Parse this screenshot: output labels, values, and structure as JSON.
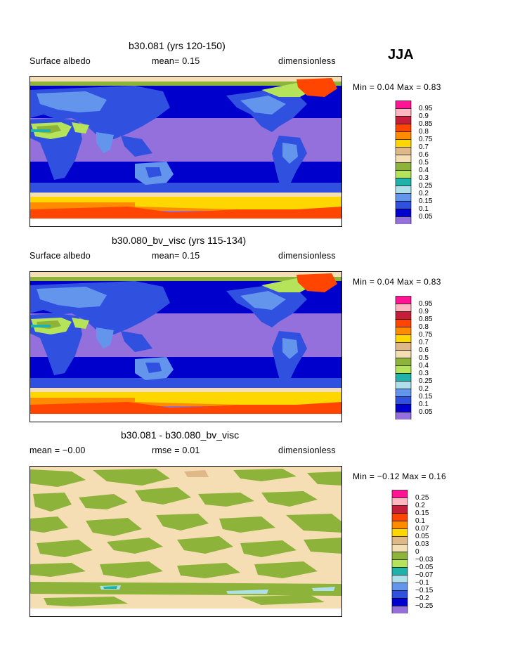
{
  "season": "JJA",
  "panels": [
    {
      "title": "b30.081 (yrs 120-150)",
      "left_label": "Surface albedo",
      "mean_text": "mean=   0.15",
      "units": "dimensionless",
      "minmax": "Min =   0.04  Max =    0.83",
      "legend": {
        "labels": [
          "0.95",
          "0.9",
          "0.85",
          "0.8",
          "0.75",
          "0.7",
          "0.6",
          "0.5",
          "0.4",
          "0.3",
          "0.25",
          "0.2",
          "0.15",
          "0.1",
          "0.05"
        ],
        "colors": [
          "#ff1493",
          "#ffb6c1",
          "#c41e3a",
          "#ff4500",
          "#ff8c00",
          "#ffd700",
          "#deb887",
          "#f5deb3",
          "#8db33a",
          "#b5e35a",
          "#20b2aa",
          "#aee0ec",
          "#6495ed",
          "#3050e0",
          "#0000cd",
          "#9370db"
        ]
      }
    },
    {
      "title": "b30.080_bv_visc (yrs 115-134)",
      "left_label": "Surface albedo",
      "mean_text": "mean=   0.15",
      "units": "dimensionless",
      "minmax": "Min =   0.04  Max =    0.83",
      "legend": {
        "labels": [
          "0.95",
          "0.9",
          "0.85",
          "0.8",
          "0.75",
          "0.7",
          "0.6",
          "0.5",
          "0.4",
          "0.3",
          "0.25",
          "0.2",
          "0.15",
          "0.1",
          "0.05"
        ],
        "colors": [
          "#ff1493",
          "#ffb6c1",
          "#c41e3a",
          "#ff4500",
          "#ff8c00",
          "#ffd700",
          "#deb887",
          "#f5deb3",
          "#8db33a",
          "#b5e35a",
          "#20b2aa",
          "#aee0ec",
          "#6495ed",
          "#3050e0",
          "#0000cd",
          "#9370db"
        ]
      }
    },
    {
      "title": "b30.081 - b30.080_bv_visc",
      "left_label": "mean =   −0.00",
      "mean_text": "rmse =    0.01",
      "units": "dimensionless",
      "minmax": "Min =   −0.12  Max =     0.16",
      "legend": {
        "labels": [
          "0.25",
          "0.2",
          "0.15",
          "0.1",
          "0.07",
          "0.05",
          "0.03",
          "0",
          "−0.03",
          "−0.05",
          "−0.07",
          "−0.1",
          "−0.15",
          "−0.2",
          "−0.25"
        ],
        "colors": [
          "#ff1493",
          "#ffb6c1",
          "#c41e3a",
          "#ff4500",
          "#ff8c00",
          "#ffd700",
          "#deb887",
          "#f5deb3",
          "#8db33a",
          "#b5e35a",
          "#20b2aa",
          "#aee0ec",
          "#6495ed",
          "#3050e0",
          "#0000cd",
          "#9370db"
        ]
      }
    }
  ],
  "palette": {
    "ocean_low": "#9370db",
    "ocean_mid": "#0000cd",
    "land_veg": "#3050e0",
    "land_mid": "#6495ed",
    "desert": "#b5e35a",
    "ice_low": "#ffd700",
    "ice_mid": "#ff8c00",
    "ice_high": "#ff4500",
    "snow_edge": "#f5deb3",
    "diff_base": "#f5deb3",
    "diff_pos": "#8db33a"
  }
}
